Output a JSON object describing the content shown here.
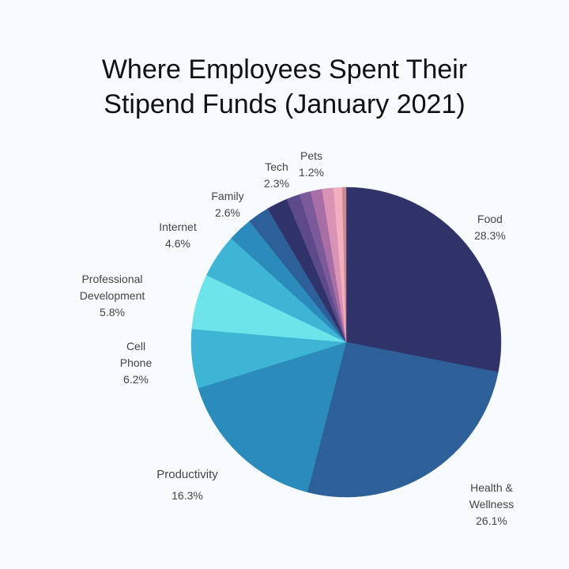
{
  "chart_data": {
    "type": "pie",
    "title_lines": [
      "Where Employees Spent Their",
      "Stipend Funds (January 2021)"
    ],
    "slices": [
      {
        "name": "Food",
        "value": 28.3,
        "pct_label": "28.3%",
        "color": "#30336a"
      },
      {
        "name": "Health & Wellness",
        "value": 26.1,
        "pct_label": "26.1%",
        "color": "#2d6099"
      },
      {
        "name": "Productivity",
        "value": 16.3,
        "pct_label": "16.3%",
        "color": "#2b8bbb"
      },
      {
        "name": "Cell Phone",
        "value": 6.2,
        "pct_label": "6.2%",
        "color": "#3fb5d5"
      },
      {
        "name": "Professional Development",
        "value": 5.8,
        "pct_label": "5.8%",
        "color": "#6ce4ea"
      },
      {
        "name": "Internet",
        "value": 4.6,
        "pct_label": "4.6%",
        "color": "#3fb5d5"
      },
      {
        "name": "Family",
        "value": 2.6,
        "pct_label": "2.6%",
        "color": "#2b8bbb"
      },
      {
        "name": "Tech",
        "value": 2.3,
        "pct_label": "2.3%",
        "color": "#2d6099"
      },
      {
        "name": "",
        "value": 2.2,
        "pct_label": "",
        "color": "#30336a"
      },
      {
        "name": "",
        "value": 1.4,
        "pct_label": "",
        "color": "#5d4a8a"
      },
      {
        "name": "",
        "value": 1.2,
        "pct_label": "",
        "color": "#7b5a9a"
      },
      {
        "name": "",
        "value": 1.2,
        "pct_label": "",
        "color": "#a86fa6"
      },
      {
        "name": "Pets",
        "value": 1.2,
        "pct_label": "1.2%",
        "color": "#d993b4"
      },
      {
        "name": "",
        "value": 0.9,
        "pct_label": "",
        "color": "#f2b0bf"
      },
      {
        "name": "",
        "value": 0.4,
        "pct_label": "",
        "color": "#c88a90"
      }
    ],
    "labels": {
      "food": {
        "name": "Food",
        "pct": "28.3%"
      },
      "health": {
        "name1": "Health &",
        "name2": "Wellness",
        "pct": "26.1%"
      },
      "productivity": {
        "name": "Productivity",
        "pct": "16.3%"
      },
      "cell": {
        "name1": "Cell",
        "name2": "Phone",
        "pct": "6.2%"
      },
      "profdev": {
        "name1": "Professional",
        "name2": "Development",
        "pct": "5.8%"
      },
      "internet": {
        "name": "Internet",
        "pct": "4.6%"
      },
      "family": {
        "name": "Family",
        "pct": "2.6%"
      },
      "tech": {
        "name": "Tech",
        "pct": "2.3%"
      },
      "pets": {
        "name": "Pets",
        "pct": "1.2%"
      }
    }
  }
}
